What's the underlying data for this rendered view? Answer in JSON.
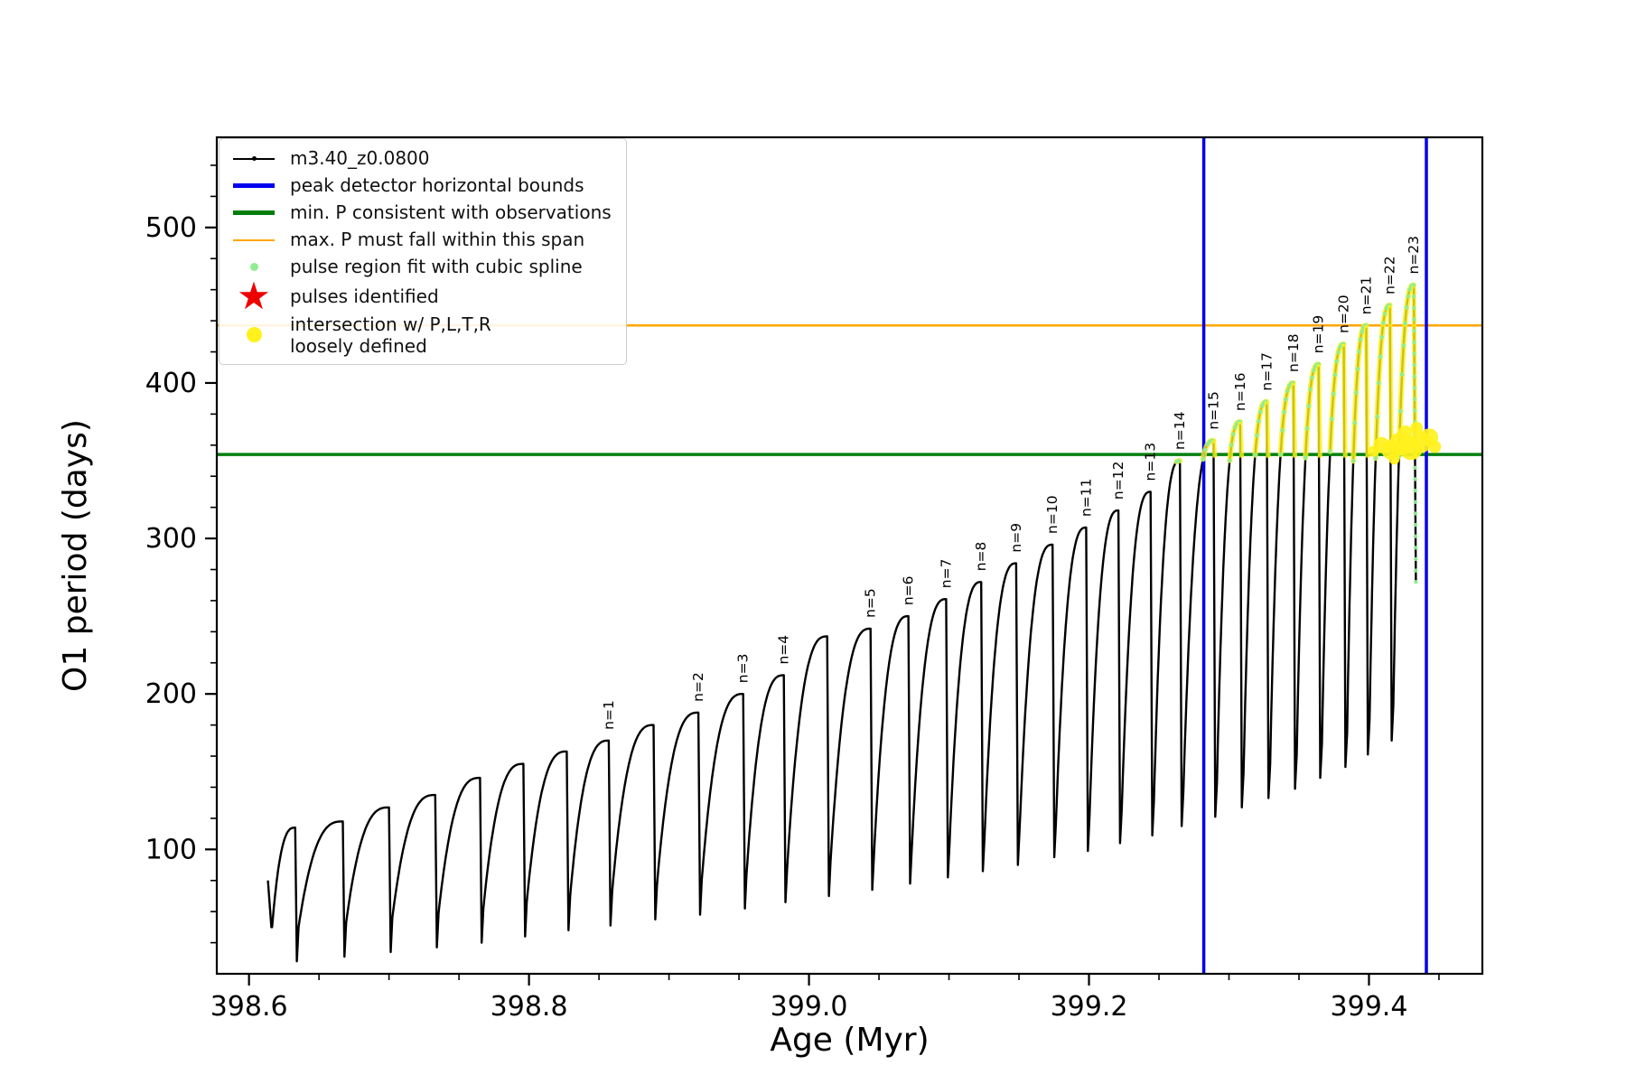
{
  "icons": {
    "star": "★"
  },
  "legend": {
    "items": [
      {
        "label": "m3.40_z0.0800",
        "symbol": "black-line-dot"
      },
      {
        "label": "peak detector horizontal bounds",
        "symbol": "blue-line"
      },
      {
        "label": "min. P consistent with observations",
        "symbol": "green-line"
      },
      {
        "label": "max. P must fall within this span",
        "symbol": "orange-line"
      },
      {
        "label": "pulse region fit with cubic spline",
        "symbol": "lightgreen-dot"
      },
      {
        "label": "pulses identified",
        "symbol": "red-star"
      },
      {
        "label": "intersection w/ P,L,T,R\nloosely defined",
        "symbol": "yellow-dot"
      }
    ]
  },
  "chart_data": {
    "type": "line",
    "title": "",
    "xlabel": "Age (Myr)",
    "ylabel": "O1 period (days)",
    "xlim": [
      398.577,
      399.481
    ],
    "ylim": [
      20,
      558
    ],
    "x_ticks": [
      398.6,
      398.8,
      399.0,
      399.2,
      399.4
    ],
    "y_ticks": [
      100,
      200,
      300,
      400,
      500
    ],
    "x_minor_step": 0.05,
    "y_minor_step": 20,
    "grid": false,
    "legend_position": "upper left",
    "series_name": "m3.40_z0.0800",
    "peak_detector_bounds_x": [
      399.282,
      399.441
    ],
    "min_P_line": 354,
    "max_P_line": 437,
    "spline_threshold": 349,
    "colors": {
      "series": "#000000",
      "bounds": "#0000ee",
      "min_P": "#007f0e",
      "max_P": "#ffa500",
      "spline": "#90ee90",
      "pulses_identified": "#ee0000",
      "intersection": "#fff11c"
    },
    "pulses": [
      {
        "t": 398.633,
        "p": 114,
        "v": 50
      },
      {
        "t": 398.667,
        "p": 118,
        "v": 50
      },
      {
        "t": 398.7,
        "p": 127,
        "v": 53
      },
      {
        "t": 398.733,
        "p": 135,
        "v": 56
      },
      {
        "t": 398.765,
        "p": 146,
        "v": 59
      },
      {
        "t": 398.796,
        "p": 155,
        "v": 62
      },
      {
        "t": 398.827,
        "p": 163,
        "v": 66
      },
      {
        "t": 398.857,
        "p": 170,
        "v": 70,
        "label": "n=1"
      },
      {
        "t": 398.889,
        "p": 180,
        "v": 73
      },
      {
        "t": 398.921,
        "p": 188,
        "v": 77,
        "label": "n=2"
      },
      {
        "t": 398.953,
        "p": 200,
        "v": 80,
        "label": "n=3"
      },
      {
        "t": 398.982,
        "p": 212,
        "v": 84,
        "label": "n=4"
      },
      {
        "t": 399.013,
        "p": 237,
        "v": 88
      },
      {
        "t": 399.044,
        "p": 242,
        "v": 92,
        "label": "n=5"
      },
      {
        "t": 399.071,
        "p": 250,
        "v": 96,
        "label": "n=6"
      },
      {
        "t": 399.098,
        "p": 261,
        "v": 100,
        "label": "n=7"
      },
      {
        "t": 399.123,
        "p": 272,
        "v": 104,
        "label": "n=8"
      },
      {
        "t": 399.148,
        "p": 284,
        "v": 108,
        "label": "n=9"
      },
      {
        "t": 399.174,
        "p": 296,
        "v": 112,
        "label": "n=10"
      },
      {
        "t": 399.198,
        "p": 307,
        "v": 117,
        "label": "n=11"
      },
      {
        "t": 399.221,
        "p": 318,
        "v": 121,
        "label": "n=12"
      },
      {
        "t": 399.244,
        "p": 330,
        "v": 126,
        "label": "n=13"
      },
      {
        "t": 399.265,
        "p": 350,
        "v": 131,
        "label": "n=14"
      },
      {
        "t": 399.289,
        "p": 363,
        "v": 137,
        "label": "n=15"
      },
      {
        "t": 399.308,
        "p": 375,
        "v": 143,
        "label": "n=16"
      },
      {
        "t": 399.327,
        "p": 388,
        "v": 149,
        "label": "n=17"
      },
      {
        "t": 399.346,
        "p": 400,
        "v": 155,
        "label": "n=18"
      },
      {
        "t": 399.364,
        "p": 412,
        "v": 161,
        "label": "n=19"
      },
      {
        "t": 399.382,
        "p": 425,
        "v": 168,
        "label": "n=20"
      },
      {
        "t": 399.398,
        "p": 437,
        "v": 175,
        "label": "n=21"
      },
      {
        "t": 399.415,
        "p": 450,
        "v": 183,
        "label": "n=22"
      },
      {
        "t": 399.432,
        "p": 463,
        "v": 192,
        "label": "n=23"
      }
    ],
    "intersection_blob_circles": [
      [
        399.403,
        356,
        6
      ],
      [
        399.409,
        360,
        9
      ],
      [
        399.416,
        357,
        11
      ],
      [
        399.423,
        361,
        13
      ],
      [
        399.43,
        358,
        13
      ],
      [
        399.437,
        362,
        12
      ],
      [
        399.443,
        365,
        10
      ],
      [
        399.447,
        359,
        7
      ],
      [
        399.434,
        371,
        7
      ],
      [
        399.418,
        351,
        6
      ],
      [
        399.426,
        368,
        8
      ]
    ]
  }
}
